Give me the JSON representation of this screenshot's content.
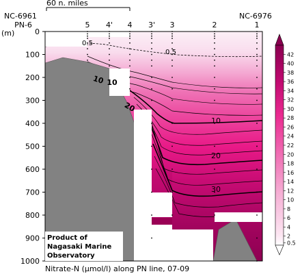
{
  "chart_data": {
    "type": "heatmap",
    "title": "Nitrate-N (μmol/l) along PN line, 07-09",
    "y_unit_label": "(m)",
    "scale_label": "60 n. miles",
    "left_station_id": "NC-6961",
    "right_station_id": "NC-6976",
    "line_name": "PN-6",
    "stations": [
      "5",
      "4'",
      "4",
      "3'",
      "3",
      "2",
      "1"
    ],
    "y_ticks": [
      0,
      100,
      200,
      300,
      400,
      500,
      600,
      700,
      800,
      900,
      1000
    ],
    "ylim": [
      0,
      1000
    ],
    "y_inverted": true,
    "colorbar_ticks": [
      "0.5",
      "2",
      "4",
      "6",
      "8",
      "10",
      "12",
      "14",
      "16",
      "18",
      "20",
      "22",
      "24",
      "26",
      "28",
      "30",
      "32",
      "34",
      "36",
      "38",
      "40",
      "42"
    ],
    "colorbar_range": [
      0,
      44
    ],
    "contour_labels": [
      {
        "text": "0.5",
        "x_station": "5",
        "depth": 65
      },
      {
        "text": "0.5",
        "x_station": "3",
        "depth": 110
      },
      {
        "text": "10",
        "x_station": "5",
        "depth": 178
      },
      {
        "text": "10",
        "x_station": "4'",
        "depth": 180
      },
      {
        "text": "20",
        "x_station": "4",
        "depth": 250
      },
      {
        "text": "10",
        "x_station": "2",
        "depth": 385
      },
      {
        "text": "20",
        "x_station": "2",
        "depth": 530
      },
      {
        "text": "30",
        "x_station": "2",
        "depth": 685
      }
    ],
    "colors": {
      "low": "#fbeaf3",
      "mid": "#ec1889",
      "high": "#a0005a",
      "topography": "#828282"
    }
  },
  "credit": [
    "Product of",
    "Nagasaki Marine",
    "Observatory"
  ]
}
